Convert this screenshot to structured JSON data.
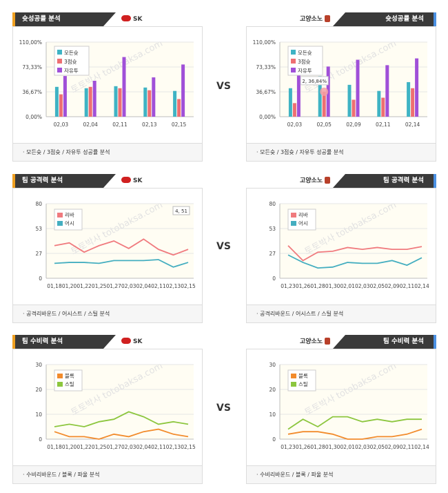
{
  "vs_label": "VS",
  "colors": {
    "teal": "#3fb3c4",
    "pink": "#ee6f72",
    "purple": "#a050d8",
    "orange": "#f28b2c",
    "green": "#8cc63e",
    "rebound": "#f07a7e",
    "assist": "#44aec0"
  },
  "panels": [
    {
      "id": "p1",
      "title": "슛성공률 분석",
      "team": "SK",
      "footer": "모든슛 / 3점슛 / 자유투 성공률 분석",
      "watermark": "토토박사 totobaksa.com"
    },
    {
      "id": "p2",
      "title": "슛성공률 분석",
      "team": "고양소노",
      "footer": "모든슛 / 3점슛 / 자유투 성공률 분석",
      "watermark": "토토박사 totobaksa.com"
    },
    {
      "id": "p3",
      "title": "팀 공격력 분석",
      "team": "SK",
      "footer": "공격리바운드 / 어시스트 / 스틸 분석",
      "watermark": "토토박사 totobaksa.com"
    },
    {
      "id": "p4",
      "title": "팀 공격력 분석",
      "team": "고양소노",
      "footer": "공격리바운드 / 어시스트 / 스틸 분석",
      "watermark": "토토박사 totobaksa.com"
    },
    {
      "id": "p5",
      "title": "팀 수비력 분석",
      "team": "SK",
      "footer": "수비리바운드 / 블록 / 파울 분석",
      "watermark": "토토박사 totobaksa.com"
    },
    {
      "id": "p6",
      "title": "팀 수비력 분석",
      "team": "고양소노",
      "footer": "수비리바운드 / 블록 / 파울 분석",
      "watermark": "토토박사 totobaksa.com"
    }
  ],
  "chart_data": [
    {
      "type": "bar",
      "categories": [
        "02,03",
        "02,04",
        "02,11",
        "02,13",
        "02,15"
      ],
      "yticks": [
        "0,00%",
        "36,67%",
        "73,33%",
        "110,00%"
      ],
      "ylim": [
        0,
        110
      ],
      "series": [
        {
          "name": "모든슛",
          "values": [
            44,
            42,
            45,
            43,
            38
          ]
        },
        {
          "name": "3점슛",
          "values": [
            33,
            44,
            42,
            39,
            26
          ]
        },
        {
          "name": "자유투",
          "values": [
            60,
            53,
            88,
            58,
            77
          ]
        }
      ]
    },
    {
      "type": "bar",
      "categories": [
        "02,03",
        "02,05",
        "02,09",
        "02,11",
        "02,14"
      ],
      "yticks": [
        "0,00%",
        "36,67%",
        "73,33%",
        "110,00%"
      ],
      "ylim": [
        0,
        110
      ],
      "series": [
        {
          "name": "모든슛",
          "values": [
            42,
            60,
            47,
            38,
            51
          ]
        },
        {
          "name": "3점슛",
          "values": [
            20,
            36.84,
            25,
            28,
            42
          ]
        },
        {
          "name": "자유투",
          "values": [
            65,
            74,
            84,
            76,
            86
          ]
        }
      ],
      "annotation": "2, 36,84%"
    },
    {
      "type": "line",
      "categories": [
        "01,18",
        "01,20",
        "01,22",
        "01,25",
        "01,27",
        "02,03",
        "02,04",
        "02,11",
        "02,13",
        "02,15"
      ],
      "yticks": [
        "0",
        "27",
        "53",
        "80"
      ],
      "ylim": [
        0,
        80
      ],
      "series": [
        {
          "name": "리바",
          "values": [
            35,
            38,
            28,
            35,
            40,
            32,
            42,
            31,
            25,
            31
          ]
        },
        {
          "name": "어시",
          "values": [
            16,
            17,
            17,
            16,
            19,
            19,
            19,
            20,
            12,
            17
          ]
        }
      ],
      "annotation": "4, 51"
    },
    {
      "type": "line",
      "categories": [
        "01,23",
        "01,26",
        "01,28",
        "01,30",
        "02,01",
        "02,03",
        "02,05",
        "02,09",
        "02,11",
        "02,14"
      ],
      "yticks": [
        "0",
        "27",
        "53",
        "80"
      ],
      "ylim": [
        0,
        80
      ],
      "series": [
        {
          "name": "리바",
          "values": [
            35,
            19,
            28,
            29,
            33,
            31,
            33,
            31,
            31,
            34
          ]
        },
        {
          "name": "어시",
          "values": [
            25,
            17,
            11,
            12,
            17,
            16,
            16,
            19,
            14,
            22
          ]
        }
      ]
    },
    {
      "type": "line",
      "categories": [
        "01,18",
        "01,20",
        "01,22",
        "01,25",
        "01,27",
        "02,03",
        "02,04",
        "02,11",
        "02,13",
        "02,15"
      ],
      "yticks": [
        "0",
        "10",
        "20",
        "30"
      ],
      "ylim": [
        0,
        30
      ],
      "series": [
        {
          "name": "블록",
          "values": [
            3,
            1,
            1,
            0,
            2,
            1,
            3,
            4,
            2,
            1
          ]
        },
        {
          "name": "스틸",
          "values": [
            5,
            6,
            5,
            7,
            8,
            11,
            9,
            6,
            7,
            6
          ]
        }
      ]
    },
    {
      "type": "line",
      "categories": [
        "01,23",
        "01,26",
        "01,28",
        "01,30",
        "02,01",
        "02,03",
        "02,05",
        "02,09",
        "02,11",
        "02,14"
      ],
      "yticks": [
        "0",
        "10",
        "20",
        "30"
      ],
      "ylim": [
        0,
        30
      ],
      "series": [
        {
          "name": "블록",
          "values": [
            2,
            3,
            3,
            2,
            0,
            0,
            1,
            1,
            2,
            4
          ]
        },
        {
          "name": "스틸",
          "values": [
            4,
            8,
            5,
            9,
            9,
            7,
            8,
            7,
            8,
            8
          ]
        }
      ]
    }
  ]
}
